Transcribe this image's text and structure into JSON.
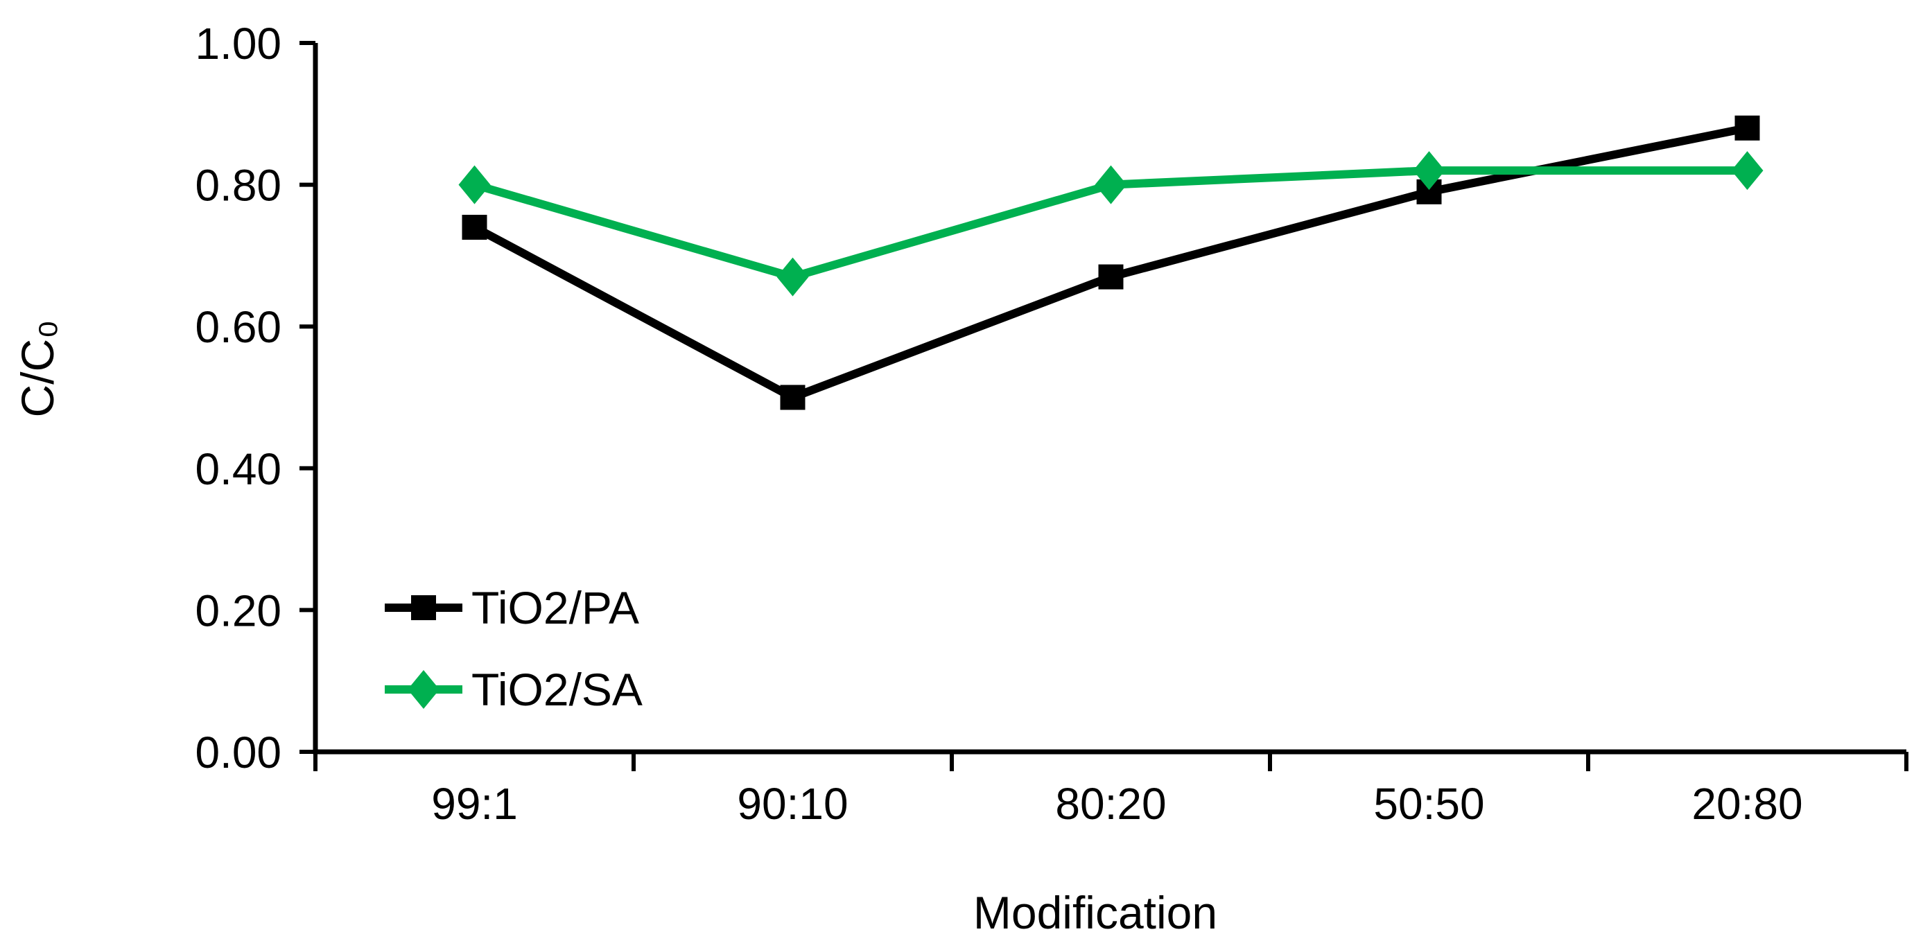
{
  "chart_data": {
    "type": "line",
    "title": "",
    "xlabel": "Modification",
    "ylabel": "C/C₀",
    "categories": [
      "99:1",
      "90:10",
      "80:20",
      "50:50",
      "20:80"
    ],
    "series": [
      {
        "name": "TiO2/PA",
        "marker": "square",
        "color": "#000000",
        "values": [
          0.74,
          0.5,
          0.67,
          0.79,
          0.88
        ]
      },
      {
        "name": "TiO2/SA",
        "marker": "diamond",
        "color": "#00B050",
        "values": [
          0.8,
          0.67,
          0.8,
          0.82,
          0.82
        ]
      }
    ],
    "ylim": [
      0.0,
      1.0
    ],
    "y_ticks": [
      "0.00",
      "0.20",
      "0.40",
      "0.60",
      "0.80",
      "1.00"
    ],
    "grid": false,
    "legend_position": "inside-lower-left",
    "axis_color": "#000000",
    "background_color": "#ffffff"
  }
}
